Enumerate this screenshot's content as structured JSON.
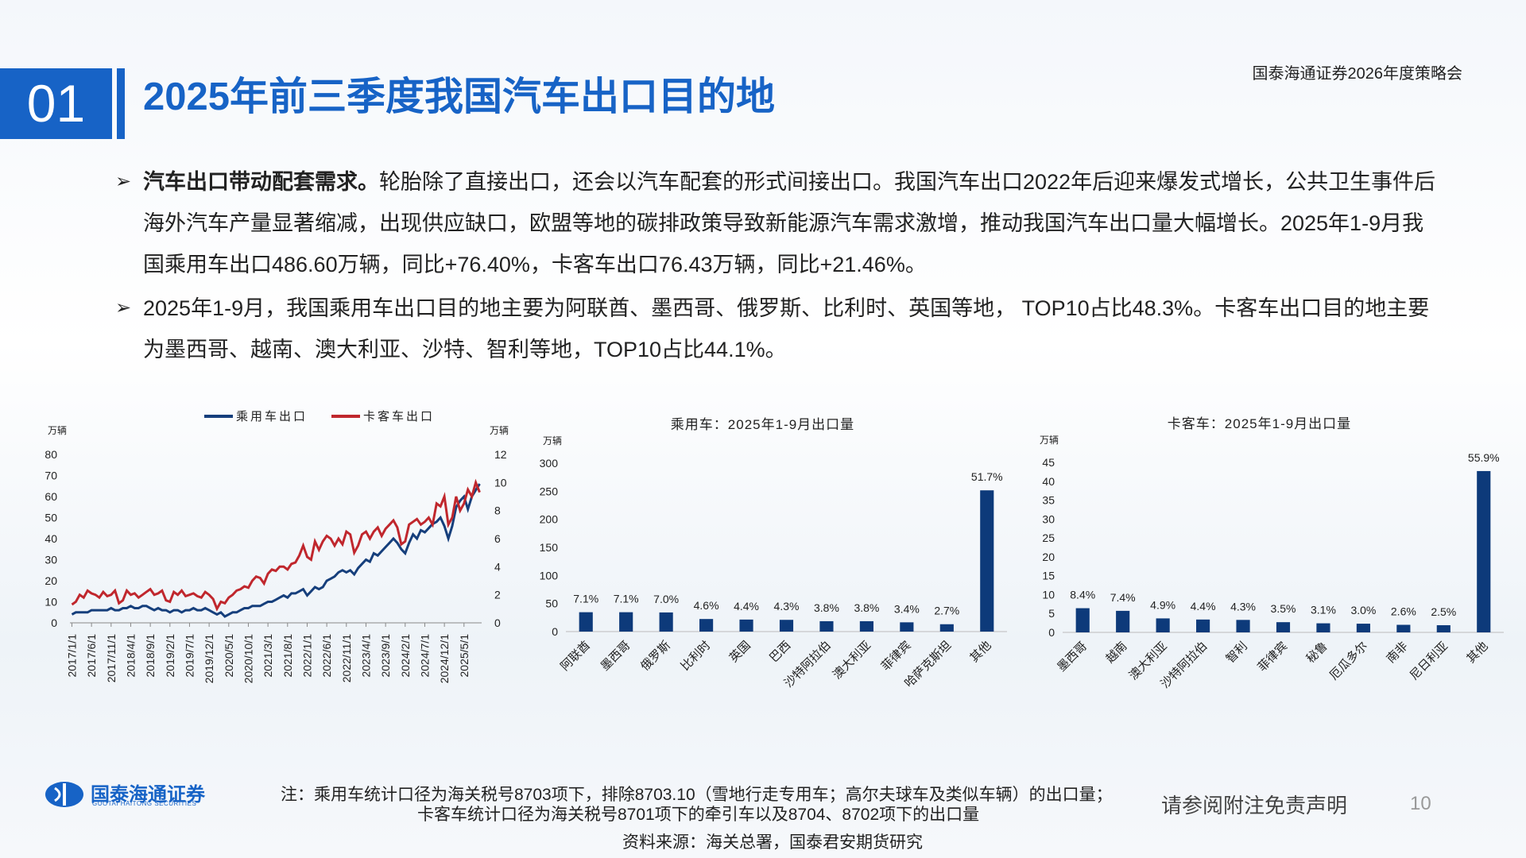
{
  "header": {
    "section_number": "01",
    "title": "2025年前三季度我国汽车出口目的地",
    "event": "国泰海通证券2026年度策略会"
  },
  "bullets": [
    {
      "bold": "汽车出口带动配套需求。",
      "text": "轮胎除了直接出口，还会以汽车配套的形式间接出口。我国汽车出口2022年后迎来爆发式增长，公共卫生事件后海外汽车产量显著缩减，出现供应缺口，欧盟等地的碳排政策导致新能源汽车需求激增，推动我国汽车出口量大幅增长。2025年1-9月我国乘用车出口486.60万辆，同比+76.40%，卡客车出口76.43万辆，同比+21.46%。"
    },
    {
      "text": "2025年1-9月，我国乘用车出口目的地主要为阿联酋、墨西哥、俄罗斯、比利时、英国等地， TOP10占比48.3%。卡客车出口目的地主要为墨西哥、越南、澳大利亚、沙特、智利等地，TOP10占比44.1%。"
    }
  ],
  "chart_data": [
    {
      "type": "line",
      "y_unit": "万辆",
      "y2_unit": "万辆",
      "categories": [
        "2017/1/1",
        null,
        null,
        null,
        null,
        "2017/6/1",
        null,
        null,
        null,
        null,
        "2017/11/1",
        null,
        null,
        null,
        null,
        "2018/4/1",
        null,
        null,
        null,
        null,
        "2018/9/1",
        null,
        null,
        null,
        null,
        "2019/2/1",
        null,
        null,
        null,
        null,
        "2019/7/1",
        null,
        null,
        null,
        null,
        "2019/12/1",
        null,
        null,
        null,
        null,
        "2020/5/1",
        null,
        null,
        null,
        null,
        "2020/10/1",
        null,
        null,
        null,
        null,
        "2021/3/1",
        null,
        null,
        null,
        null,
        "2021/8/1",
        null,
        null,
        null,
        null,
        "2022/1/1",
        null,
        null,
        null,
        null,
        "2022/6/1",
        null,
        null,
        null,
        null,
        "2022/11/1",
        null,
        null,
        null,
        null,
        "2023/4/1",
        null,
        null,
        null,
        null,
        "2023/9/1",
        null,
        null,
        null,
        null,
        "2024/2/1",
        null,
        null,
        null,
        null,
        "2024/7/1",
        null,
        null,
        null,
        null,
        "2024/12/1",
        null,
        null,
        null,
        null,
        "2025/5/1",
        null,
        null,
        null,
        null
      ],
      "series": [
        {
          "name": "乘用车出口",
          "color": "#163f7c",
          "values": [
            4,
            5,
            5,
            5,
            5,
            6,
            6,
            6,
            6,
            6,
            7,
            6,
            6,
            7,
            7,
            8,
            7,
            7,
            8,
            8,
            7,
            6,
            7,
            6,
            6,
            5,
            6,
            6,
            5,
            6,
            6,
            7,
            6,
            6,
            7,
            6,
            5,
            4,
            5,
            3,
            4,
            5,
            5,
            6,
            7,
            7,
            8,
            8,
            8,
            9,
            10,
            10,
            11,
            12,
            13,
            12,
            14,
            14,
            15,
            16,
            13,
            15,
            17,
            16,
            17,
            20,
            21,
            22,
            24,
            25,
            24,
            25,
            23,
            26,
            28,
            30,
            29,
            33,
            32,
            34,
            36,
            38,
            40,
            38,
            35,
            33,
            38,
            42,
            40,
            44,
            43,
            45,
            47,
            48,
            50,
            46,
            40,
            46,
            55,
            58,
            60,
            54,
            60,
            63,
            66
          ]
        },
        {
          "name": "卡客车出口",
          "color": "#c0272d",
          "axis": "y2",
          "values": [
            1.3,
            1.5,
            2.0,
            1.8,
            2.3,
            2.1,
            2.0,
            1.8,
            2.2,
            1.9,
            2.0,
            2.3,
            1.4,
            1.6,
            2.3,
            2.0,
            2.1,
            1.8,
            2.0,
            2.2,
            2.4,
            2.0,
            2.1,
            2.3,
            1.6,
            1.5,
            2.2,
            2.0,
            2.3,
            1.9,
            2.0,
            2.1,
            1.9,
            1.8,
            2.2,
            2.0,
            1.7,
            1.0,
            1.5,
            1.4,
            1.8,
            2.0,
            2.3,
            2.4,
            2.6,
            2.5,
            3.0,
            3.3,
            3.2,
            2.8,
            3.5,
            3.8,
            3.7,
            4.0,
            4.0,
            3.8,
            4.2,
            4.3,
            4.8,
            5.5,
            4.7,
            4.5,
            5.8,
            5.2,
            5.8,
            6.2,
            6.0,
            5.5,
            6.0,
            5.6,
            6.5,
            6.3,
            5.0,
            5.5,
            6.3,
            6.5,
            6.0,
            6.5,
            6.8,
            6.2,
            6.7,
            7.0,
            7.3,
            6.8,
            5.6,
            5.8,
            7.0,
            7.2,
            7.4,
            7.0,
            7.2,
            7.5,
            7.0,
            8.5,
            8.3,
            9.0,
            7.0,
            7.5,
            9.0,
            8.0,
            8.5,
            9.5,
            9.0,
            10.0,
            9.3
          ]
        }
      ],
      "ylim": [
        0,
        80
      ],
      "yticks": [
        0,
        10,
        20,
        30,
        40,
        50,
        60,
        70,
        80
      ],
      "y2lim": [
        0,
        12
      ],
      "y2ticks": [
        0,
        2,
        4,
        6,
        8,
        10,
        12
      ],
      "legend": "top"
    },
    {
      "type": "bar",
      "title": "乘用车：2025年1-9月出口量",
      "y_unit": "万辆",
      "color": "#0d3a7a",
      "categories": [
        "阿联酋",
        "墨西哥",
        "俄罗斯",
        "比利时",
        "英国",
        "巴西",
        "沙特阿拉伯",
        "澳大利亚",
        "菲律宾",
        "哈萨克斯坦",
        "其他"
      ],
      "values": [
        34.5,
        34.5,
        34.1,
        22.4,
        21.4,
        20.9,
        18.5,
        18.5,
        16.5,
        13.1,
        251.6
      ],
      "share_labels": [
        "7.1%",
        "7.1%",
        "7.0%",
        "4.6%",
        "4.4%",
        "4.3%",
        "3.8%",
        "3.8%",
        "3.4%",
        "2.7%",
        "51.7%"
      ],
      "ylim": [
        0,
        300
      ],
      "yticks": [
        0,
        50,
        100,
        150,
        200,
        250,
        300
      ]
    },
    {
      "type": "bar",
      "title": "卡客车：2025年1-9月出口量",
      "y_unit": "万辆",
      "color": "#0d3a7a",
      "categories": [
        "墨西哥",
        "越南",
        "澳大利亚",
        "沙特阿拉伯",
        "智利",
        "菲律宾",
        "秘鲁",
        "厄瓜多尔",
        "南非",
        "尼日利亚",
        "其他"
      ],
      "values": [
        6.4,
        5.7,
        3.7,
        3.4,
        3.3,
        2.7,
        2.4,
        2.3,
        2.0,
        1.9,
        42.7
      ],
      "share_labels": [
        "8.4%",
        "7.4%",
        "4.9%",
        "4.4%",
        "4.3%",
        "3.5%",
        "3.1%",
        "3.0%",
        "2.6%",
        "2.5%",
        "55.9%"
      ],
      "ylim": [
        0,
        45
      ],
      "yticks": [
        0,
        5,
        10,
        15,
        20,
        25,
        30,
        35,
        40,
        45
      ]
    }
  ],
  "footer": {
    "logo_cn": "国泰海通证券",
    "logo_en": "GUOTAI HAITONG SECURITIES",
    "note_1": "注：乘用车统计口径为海关税号8703项下，排除8703.10（雪地行走专用车；高尔夫球车及类似车辆）的出口量；",
    "note_2": "卡客车统计口径为海关税号8701项下的牵引车以及8704、8702项下的出口量",
    "source": "资料来源：海关总署，国泰君安期货研究",
    "disclaimer": "请参阅附注免责声明",
    "page": "10"
  }
}
